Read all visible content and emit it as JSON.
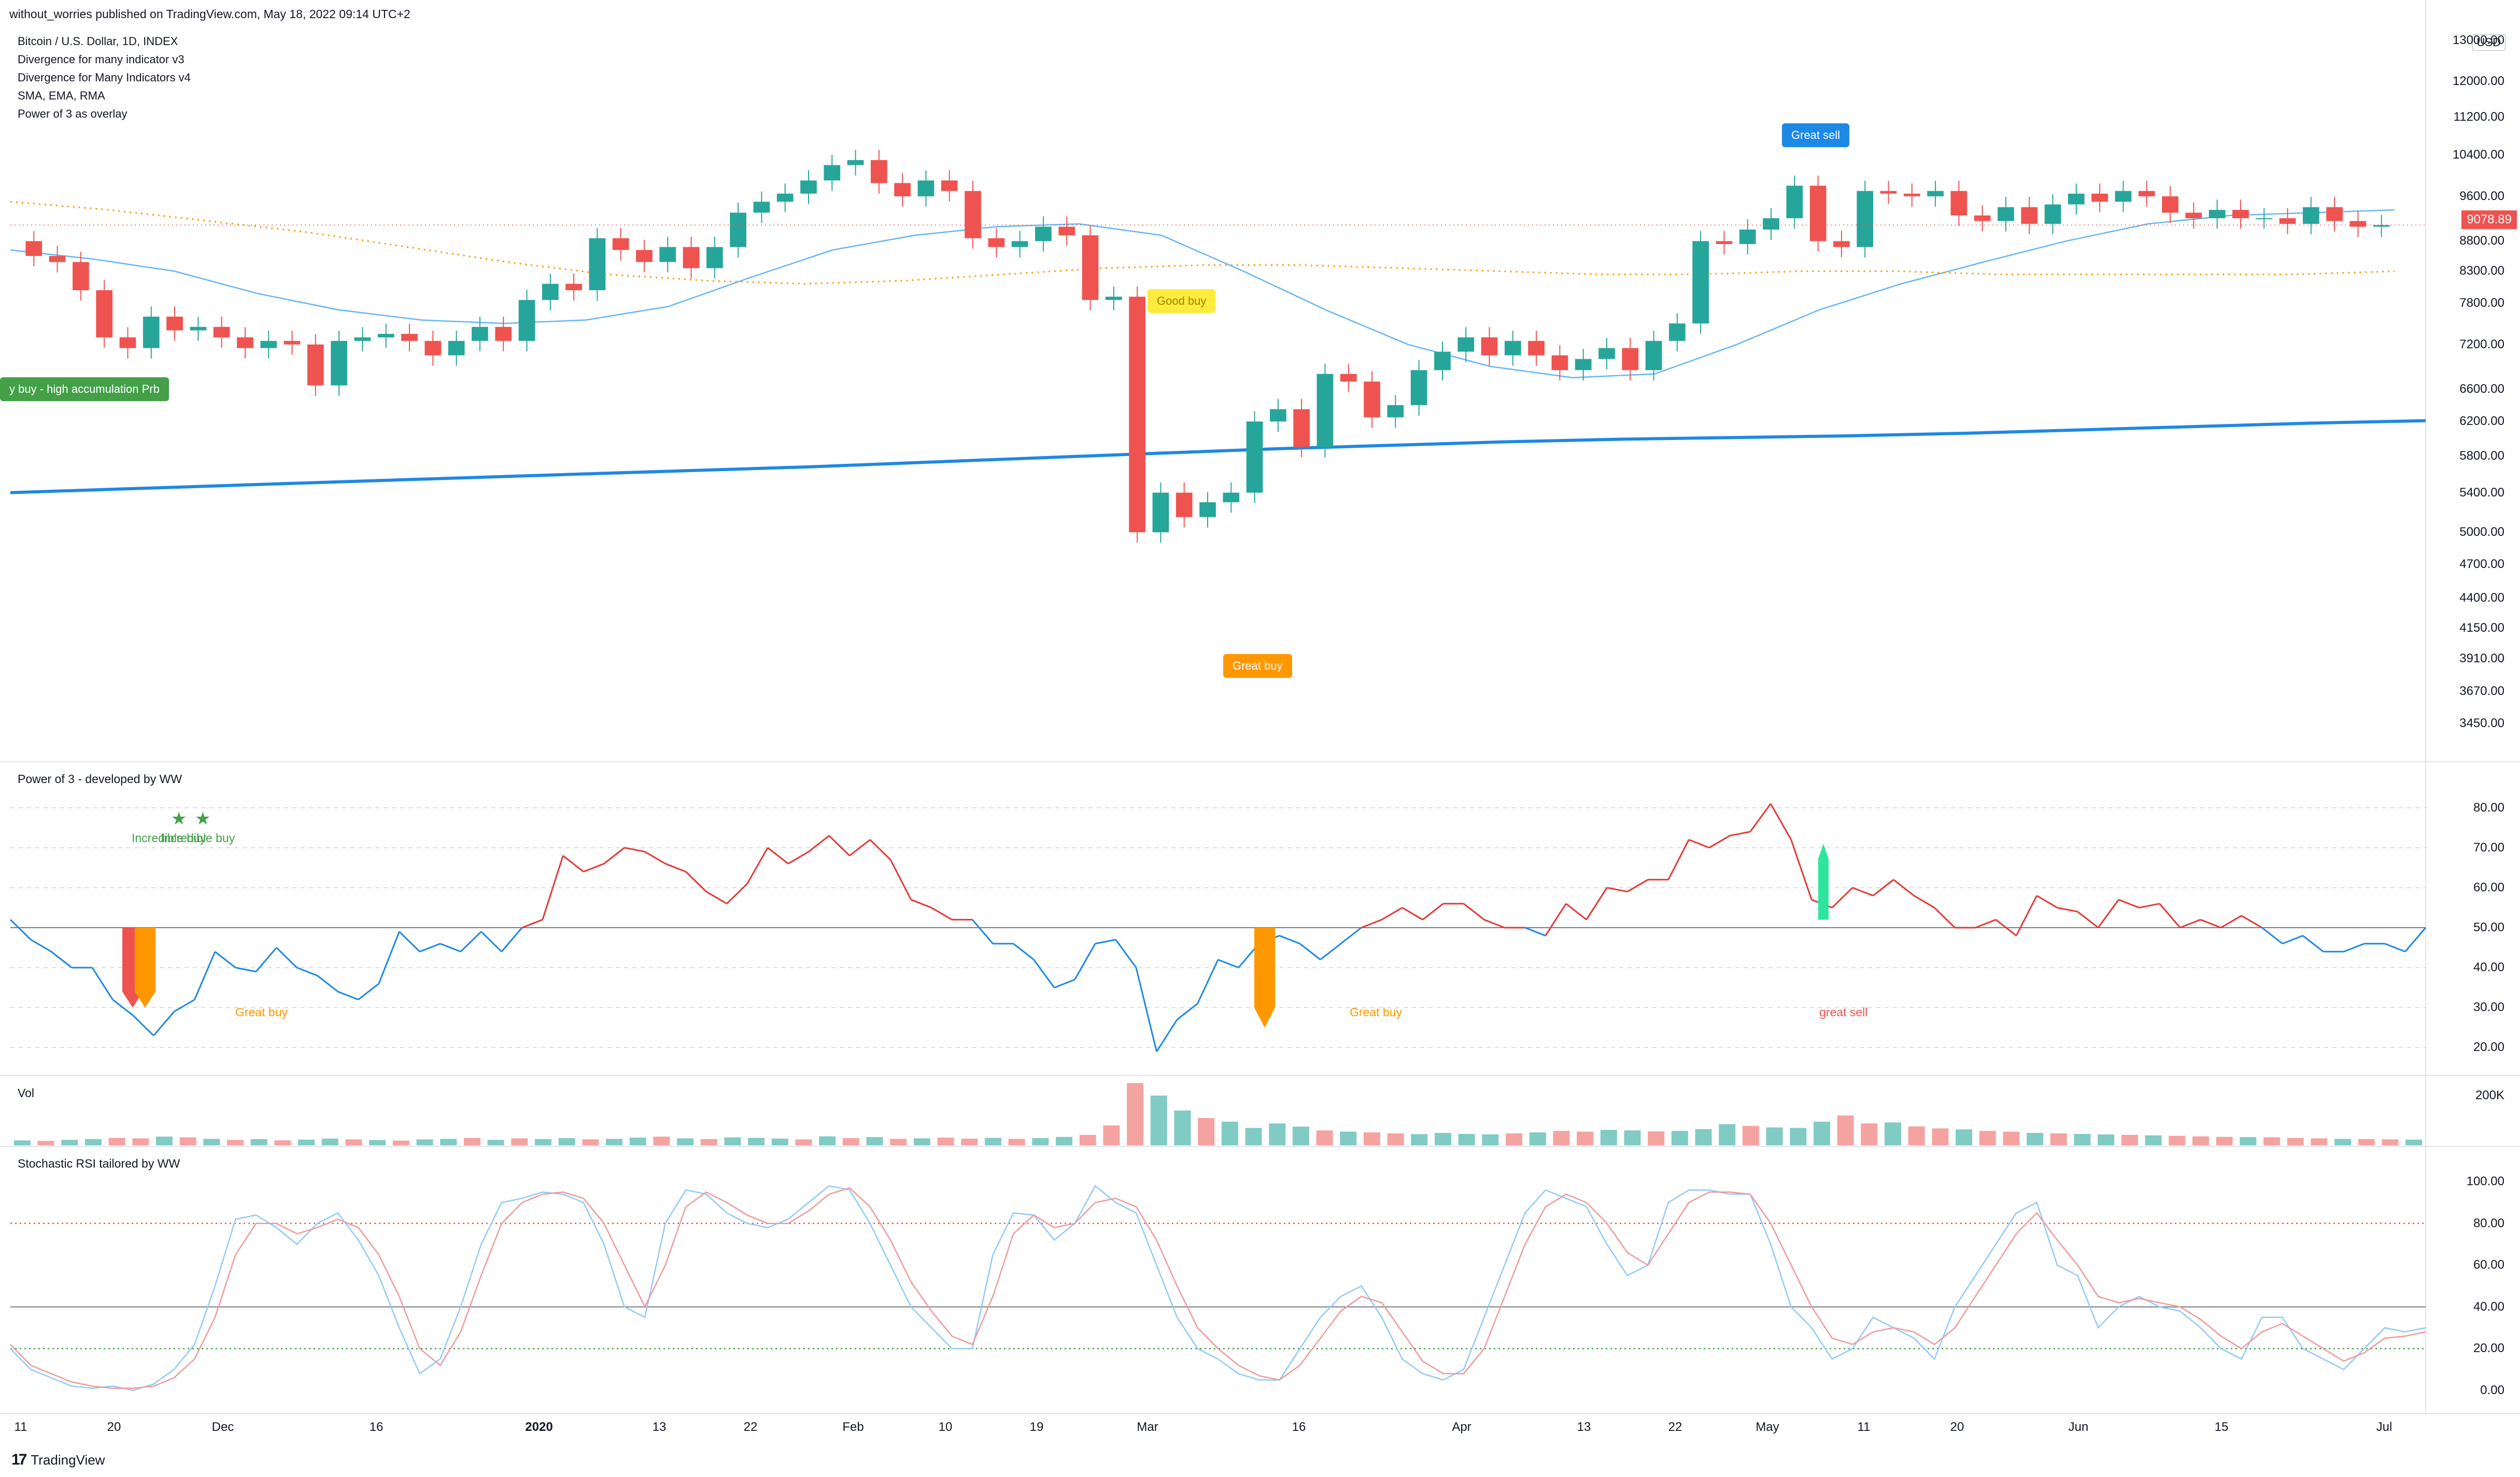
{
  "publisher_line": "without_worries published on TradingView.com, May 18, 2022 09:14 UTC+2",
  "legend": [
    "Bitcoin / U.S. Dollar, 1D, INDEX",
    "Divergence for many indicator v3",
    "Divergence for Many Indicators v4",
    "SMA, EMA, RMA",
    "Power of 3 as overlay"
  ],
  "currency": "USD",
  "last_price": "9078.89",
  "pane_titles": {
    "power": "Power of 3 - developed by WW",
    "vol": "Vol",
    "stoch": "Stochastic RSI tailored by WW"
  },
  "price_axis": [
    "13000.00",
    "12000.00",
    "11200.00",
    "10400.00",
    "9600.00",
    "8800.00",
    "8300.00",
    "7800.00",
    "7200.00",
    "6600.00",
    "6200.00",
    "5800.00",
    "5400.00",
    "5000.00",
    "4700.00",
    "4400.00",
    "4150.00",
    "3910.00",
    "3670.00",
    "3450.00"
  ],
  "power_axis": [
    "80.00",
    "70.00",
    "60.00",
    "50.00",
    "40.00",
    "30.00",
    "20.00"
  ],
  "vol_axis": [
    "200K"
  ],
  "stoch_axis": [
    "100.00",
    "80.00",
    "60.00",
    "40.00",
    "20.00",
    "0.00"
  ],
  "x_axis": [
    "11",
    "20",
    "Dec",
    "16",
    "2020",
    "13",
    "22",
    "Feb",
    "10",
    "19",
    "Mar",
    "16",
    "Apr",
    "13",
    "22",
    "May",
    "11",
    "20",
    "Jun",
    "15",
    "Jul"
  ],
  "markers": {
    "accumulation": "y buy - high accumulation Prb",
    "good_buy": "Good buy",
    "great_buy": "Great buy",
    "great_sell": "Great sell"
  },
  "power_annotations": {
    "incredible_buy_1": "Incredible buy",
    "incredible_buy_2": "Incredible buy",
    "great_buy_1": "Great buy",
    "great_buy_2": "Great buy",
    "great_sell": "great sell"
  },
  "brand": "TradingView",
  "colors": {
    "up": "#26a69a",
    "down": "#ef5350",
    "sma_long": "#1e88e5",
    "ema_mid": "#64b5f6",
    "overlay_dots": "#ff9800",
    "power_bull": "#e53935",
    "power_bear": "#1e88e5",
    "stoch_k": "#90caf9",
    "stoch_d": "#ef9a9a"
  },
  "chart_data": [
    {
      "type": "candlestick",
      "title": "Bitcoin / U.S. Dollar, 1D, INDEX",
      "ylabel": "USD",
      "ylim": [
        3300,
        13500
      ],
      "y_scale": "log",
      "x": [
        "Nov 11",
        "Nov 20",
        "Dec",
        "Dec 16",
        "2020",
        "Jan 13",
        "Jan 22",
        "Feb",
        "Feb 10",
        "Feb 19",
        "Mar",
        "Mar 16",
        "Apr",
        "Apr 13",
        "Apr 22",
        "May",
        "May 11",
        "May 20",
        "Jun",
        "Jun 15",
        "Jul"
      ],
      "close_path": [
        8800,
        8550,
        8450,
        8000,
        7300,
        7150,
        7600,
        7400,
        7450,
        7300,
        7150,
        7250,
        7200,
        6650,
        7250,
        7300,
        7350,
        7250,
        7050,
        7250,
        7450,
        7250,
        7850,
        8100,
        8000,
        8850,
        8650,
        8450,
        8700,
        8350,
        8700,
        9300,
        9500,
        9650,
        9900,
        10200,
        10300,
        9850,
        9600,
        9900,
        9700,
        8850,
        8700,
        8800,
        9050,
        8900,
        7850,
        7900,
        5000,
        5400,
        5150,
        5300,
        5400,
        6200,
        6350,
        5900,
        6800,
        6700,
        6250,
        6400,
        6850,
        7100,
        7300,
        7050,
        7250,
        7050,
        6850,
        7000,
        7150,
        6850,
        7250,
        7500,
        8800,
        8750,
        9000,
        9200,
        9800,
        8800,
        8700,
        9700,
        9650,
        9600,
        9700,
        9250,
        9150,
        9400,
        9100,
        9450,
        9650,
        9500,
        9700,
        9600,
        9300,
        9200,
        9350,
        9200,
        9200,
        9100,
        9400,
        9150,
        9050,
        9078.89
      ],
      "ma_long_path": [
        5400,
        5440,
        5480,
        5520,
        5560,
        5600,
        5640,
        5680,
        5730,
        5780,
        5830,
        5880,
        5920,
        5960,
        5990,
        6010,
        6030,
        6060,
        6100,
        6140,
        6180,
        6210
      ],
      "ma_mid_path": [
        8650,
        8500,
        8300,
        7950,
        7700,
        7550,
        7500,
        7550,
        7750,
        8200,
        8650,
        8900,
        9050,
        9100,
        8900,
        8300,
        7700,
        7200,
        6900,
        6750,
        6800,
        7200,
        7700,
        8100,
        8450,
        8800,
        9100,
        9250,
        9300,
        9350
      ],
      "dotted_overlay_path": [
        9500,
        9350,
        9150,
        8950,
        8700,
        8450,
        8250,
        8150,
        8100,
        8150,
        8250,
        8350,
        8400,
        8400,
        8350,
        8300,
        8250,
        8250,
        8300,
        8300,
        8250,
        8250,
        8250,
        8250,
        8300
      ]
    },
    {
      "type": "line",
      "title": "Power of 3 - developed by WW",
      "ylim": [
        15,
        85
      ],
      "midline": 50,
      "values": [
        52,
        47,
        44,
        40,
        40,
        32,
        28,
        23,
        29,
        32,
        44,
        40,
        39,
        45,
        40,
        38,
        34,
        32,
        36,
        49,
        44,
        46,
        44,
        49,
        44,
        50,
        52,
        68,
        64,
        66,
        70,
        69,
        66,
        64,
        59,
        56,
        61,
        70,
        66,
        69,
        73,
        68,
        72,
        67,
        57,
        55,
        52,
        52,
        46,
        46,
        42,
        35,
        37,
        46,
        47,
        40,
        19,
        27,
        31,
        42,
        40,
        46,
        48,
        46,
        42,
        46,
        50,
        52,
        55,
        52,
        56,
        56,
        52,
        50,
        50,
        48,
        56,
        52,
        60,
        59,
        62,
        62,
        72,
        70,
        73,
        74,
        81,
        72,
        57,
        55,
        60,
        58,
        62,
        58,
        55,
        50,
        50,
        52,
        48,
        58,
        55,
        54,
        50,
        57,
        55,
        56,
        50,
        52,
        50,
        53,
        50,
        46,
        48,
        44,
        44,
        46,
        46,
        44,
        50
      ],
      "bars": [
        {
          "label": "Incredible buy",
          "value_from": 50,
          "value_to": 30,
          "color": "#ef5350"
        },
        {
          "label": "Incredible buy",
          "value_from": 50,
          "value_to": 30,
          "color": "#ff9800"
        },
        {
          "label": "Great buy",
          "value_from": 50,
          "value_to": 25,
          "color": "#ff9800"
        },
        {
          "label": "great sell",
          "value_from": 52,
          "value_to": 71,
          "color": "#2ee59d"
        }
      ]
    },
    {
      "type": "bar",
      "title": "Vol",
      "ylim": [
        0,
        250000
      ],
      "values": [
        20000,
        18000,
        22000,
        25000,
        30000,
        28000,
        35000,
        32000,
        26000,
        22000,
        25000,
        20000,
        23000,
        27000,
        24000,
        21000,
        19000,
        24000,
        26000,
        30000,
        22000,
        28000,
        25000,
        29000,
        24000,
        26000,
        31000,
        35000,
        28000,
        25000,
        32000,
        30000,
        27000,
        24000,
        36000,
        29000,
        33000,
        26000,
        28000,
        31000,
        27000,
        30000,
        26000,
        29000,
        34000,
        42000,
        80000,
        250000,
        200000,
        140000,
        110000,
        95000,
        70000,
        88000,
        75000,
        60000,
        55000,
        52000,
        48000,
        45000,
        50000,
        46000,
        44000,
        48000,
        52000,
        58000,
        55000,
        62000,
        60000,
        56000,
        58000,
        65000,
        85000,
        78000,
        72000,
        70000,
        95000,
        120000,
        88000,
        92000,
        76000,
        68000,
        64000,
        58000,
        55000,
        50000,
        48000,
        46000,
        44000,
        42000,
        40000,
        38000,
        36000,
        34000,
        33000,
        32000,
        30000,
        28000,
        26000,
        25000,
        24000,
        23000
      ],
      "ups": [
        true,
        false,
        true,
        true,
        false,
        false,
        true,
        false,
        true,
        false,
        true,
        false,
        true,
        true,
        false,
        true,
        false,
        true,
        true,
        false,
        true,
        false,
        true,
        true,
        false,
        true,
        true,
        false,
        true,
        false,
        true,
        true,
        true,
        false,
        true,
        false,
        true,
        false,
        true,
        false,
        false,
        true,
        false,
        true,
        true,
        false,
        false,
        false,
        true,
        true,
        false,
        true,
        true,
        true,
        true,
        false,
        true,
        false,
        false,
        true,
        true,
        true,
        true,
        false,
        true,
        false,
        false,
        true,
        true,
        false,
        true,
        true,
        true,
        false,
        true,
        true,
        true,
        false,
        false,
        true,
        false,
        false,
        true,
        false,
        false,
        true,
        false,
        true,
        true,
        false,
        true,
        false,
        false,
        false,
        true,
        false,
        false,
        false,
        true,
        false,
        false,
        true
      ]
    },
    {
      "type": "line",
      "title": "Stochastic RSI tailored by WW",
      "ylim": [
        -8,
        105
      ],
      "levels": [
        80,
        40,
        20
      ],
      "series": [
        {
          "values": [
            20,
            10,
            6,
            2,
            1,
            2,
            0,
            3,
            10,
            22,
            50,
            82,
            84,
            78,
            70,
            80,
            85,
            72,
            55,
            30,
            8,
            15,
            40,
            70,
            90,
            92,
            95,
            94,
            90,
            70,
            40,
            35,
            80,
            96,
            94,
            85,
            80,
            78,
            82,
            90,
            98,
            96,
            80,
            60,
            40,
            30,
            20,
            20,
            65,
            85,
            84,
            72,
            80,
            98,
            90,
            85,
            60,
            35,
            20,
            15,
            8,
            5,
            5,
            20,
            35,
            45,
            50,
            35,
            15,
            8,
            5,
            10,
            35,
            60,
            85,
            96,
            92,
            88,
            70,
            55,
            60,
            90,
            96,
            96,
            94,
            94,
            70,
            40,
            30,
            15,
            20,
            35,
            30,
            25,
            15,
            40,
            55,
            70,
            85,
            90,
            60,
            55,
            30,
            40,
            45,
            40,
            38,
            30,
            20,
            15,
            35,
            35,
            20,
            15,
            10,
            20,
            30,
            28,
            30
          ]
        },
        {
          "values": [
            22,
            12,
            8,
            4,
            2,
            1,
            1,
            2,
            6,
            15,
            35,
            65,
            80,
            80,
            75,
            78,
            82,
            78,
            65,
            45,
            20,
            12,
            28,
            55,
            80,
            90,
            94,
            95,
            92,
            80,
            60,
            40,
            60,
            88,
            95,
            90,
            84,
            80,
            80,
            86,
            94,
            97,
            88,
            72,
            52,
            38,
            26,
            22,
            45,
            75,
            84,
            78,
            80,
            90,
            92,
            88,
            72,
            50,
            30,
            20,
            12,
            7,
            5,
            12,
            25,
            38,
            45,
            42,
            28,
            14,
            8,
            8,
            20,
            45,
            70,
            88,
            94,
            90,
            80,
            66,
            60,
            75,
            90,
            95,
            95,
            94,
            80,
            60,
            40,
            25,
            22,
            28,
            30,
            28,
            22,
            30,
            45,
            60,
            75,
            85,
            72,
            60,
            45,
            42,
            44,
            42,
            40,
            34,
            26,
            20,
            28,
            32,
            26,
            20,
            14,
            18,
            25,
            26,
            28
          ]
        }
      ]
    }
  ]
}
